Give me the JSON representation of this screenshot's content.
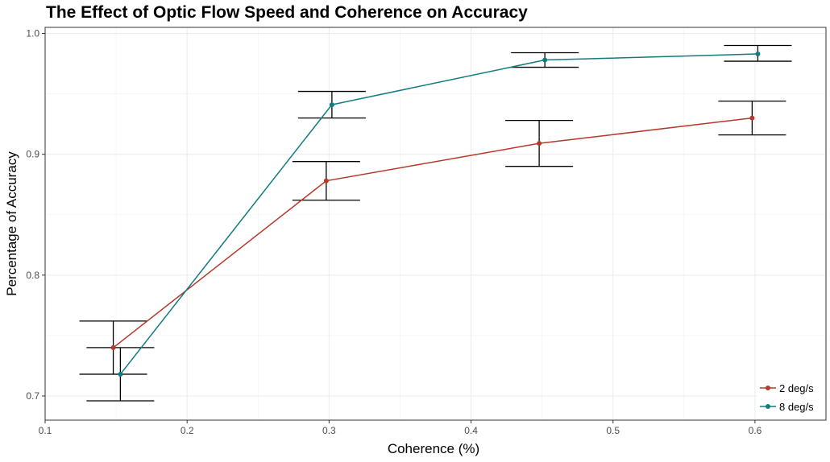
{
  "chart_data": {
    "type": "line",
    "title": "The Effect of Optic Flow Speed and Coherence on Accuracy",
    "xlabel": "Coherence (%)",
    "ylabel": "Percentage of Accuracy",
    "xlim": [
      0.1,
      0.65
    ],
    "ylim": [
      0.68,
      1.005
    ],
    "x_ticks": [
      "0.1",
      "0.2",
      "0.3",
      "0.4",
      "0.5",
      "0.6"
    ],
    "y_ticks": [
      "0.7",
      "0.8",
      "0.9",
      "1.0"
    ],
    "grid": true,
    "legend_position": "bottom-right",
    "series": [
      {
        "name": "2 deg/s",
        "color": "#b5382a",
        "points": [
          {
            "x": 0.148,
            "y": 0.74,
            "ymin": 0.718,
            "ymax": 0.762
          },
          {
            "x": 0.298,
            "y": 0.878,
            "ymin": 0.862,
            "ymax": 0.894
          },
          {
            "x": 0.448,
            "y": 0.909,
            "ymin": 0.89,
            "ymax": 0.928
          },
          {
            "x": 0.598,
            "y": 0.93,
            "ymin": 0.916,
            "ymax": 0.944
          }
        ]
      },
      {
        "name": "8 deg/s",
        "color": "#127b80",
        "points": [
          {
            "x": 0.153,
            "y": 0.718,
            "ymin": 0.696,
            "ymax": 0.74
          },
          {
            "x": 0.302,
            "y": 0.941,
            "ymin": 0.93,
            "ymax": 0.952
          },
          {
            "x": 0.452,
            "y": 0.978,
            "ymin": 0.972,
            "ymax": 0.984
          },
          {
            "x": 0.602,
            "y": 0.983,
            "ymin": 0.977,
            "ymax": 0.99
          }
        ]
      }
    ]
  }
}
